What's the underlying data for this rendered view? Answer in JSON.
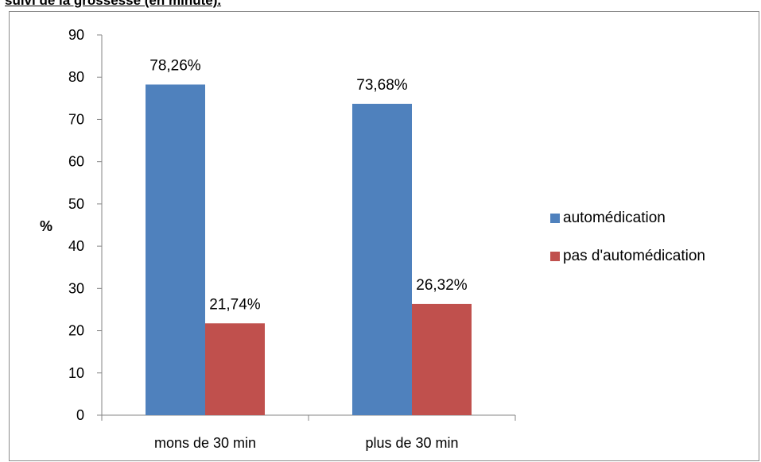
{
  "header": {
    "text": "suivi de la grossesse (en minute)."
  },
  "chart_data": {
    "type": "bar",
    "title": "",
    "xlabel": "",
    "ylabel": "%",
    "ylim": [
      0,
      90
    ],
    "yticks": [
      0,
      10,
      20,
      30,
      40,
      50,
      60,
      70,
      80,
      90
    ],
    "grid": false,
    "legend_position": "right",
    "categories": [
      "mons de 30 min",
      "plus de 30 min"
    ],
    "series": [
      {
        "name": "automédication",
        "color": "#4f81bd",
        "values": [
          78.26,
          73.68
        ],
        "labels": [
          "78,26%",
          "73,68%"
        ]
      },
      {
        "name": "pas d'automédication",
        "color": "#c0504d",
        "values": [
          21.74,
          26.32
        ],
        "labels": [
          "21,74%",
          "26,32%"
        ]
      }
    ]
  }
}
